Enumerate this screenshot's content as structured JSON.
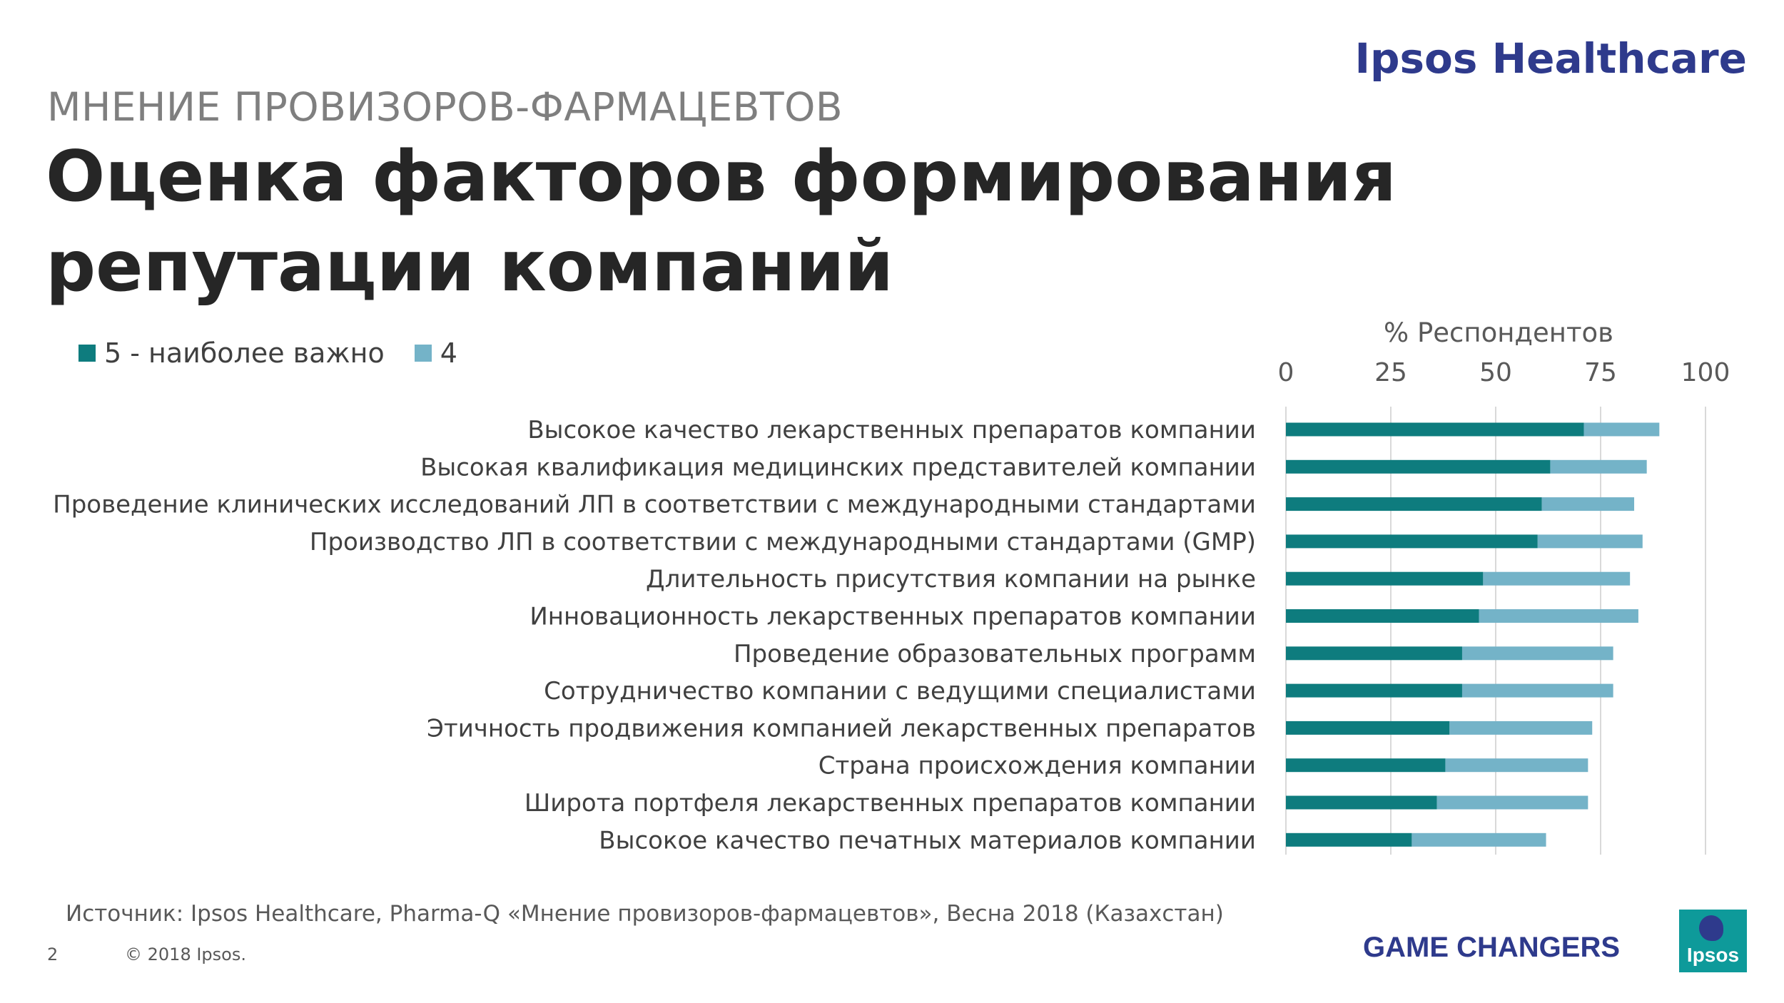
{
  "header": {
    "brand": "Ipsos Healthcare",
    "subtitle": "МНЕНИЕ ПРОВИЗОРОВ-ФАРМАЦЕВТОВ",
    "title": "Оценка факторов формирования репутации компаний"
  },
  "footer": {
    "source": "Источник: Ipsos Healthcare, Pharma-Q «Мнение провизоров-фармацевтов», Весна 2018 (Казахстан)",
    "page_number": "2",
    "copyright": "© 2018 Ipsos.",
    "tagline": "GAME CHANGERS",
    "logo_text": "Ipsos"
  },
  "colors": {
    "series_5": "#0e7c7e",
    "series_4": "#74b3c8",
    "brand": "#2e3a8c",
    "grid": "#d9d9d9"
  },
  "chart_data": {
    "type": "bar",
    "orientation": "horizontal",
    "stacked": true,
    "xlabel": "% Респондентов",
    "xlim": [
      0,
      100
    ],
    "xticks": [
      "0",
      "25",
      "50",
      "75",
      "100"
    ],
    "legend_position": "top-left",
    "grid": true,
    "categories": [
      "Высокое качество лекарственных препаратов компании",
      "Высокая квалификация медицинских представителей компании",
      "Проведение клинических исследований ЛП в соответствии с международными стандартами",
      "Производство ЛП в соответствии с международными стандартами (GMP)",
      "Длительность присутствия компании на рынке",
      "Инновационность лекарственных препаратов компании",
      "Проведение образовательных программ",
      "Сотрудничество компании с ведущими специалистами",
      "Этичность продвижения компанией лекарственных препаратов",
      "Страна происхождения компании",
      "Широта портфеля лекарственных препаратов компании",
      "Высокое качество печатных материалов компании"
    ],
    "series": [
      {
        "name": "5 - наиболее важно",
        "values": [
          71,
          63,
          61,
          60,
          47,
          46,
          42,
          42,
          39,
          38,
          36,
          30
        ]
      },
      {
        "name": "4",
        "values": [
          18,
          23,
          22,
          25,
          35,
          38,
          36,
          36,
          34,
          34,
          36,
          32
        ]
      }
    ]
  }
}
